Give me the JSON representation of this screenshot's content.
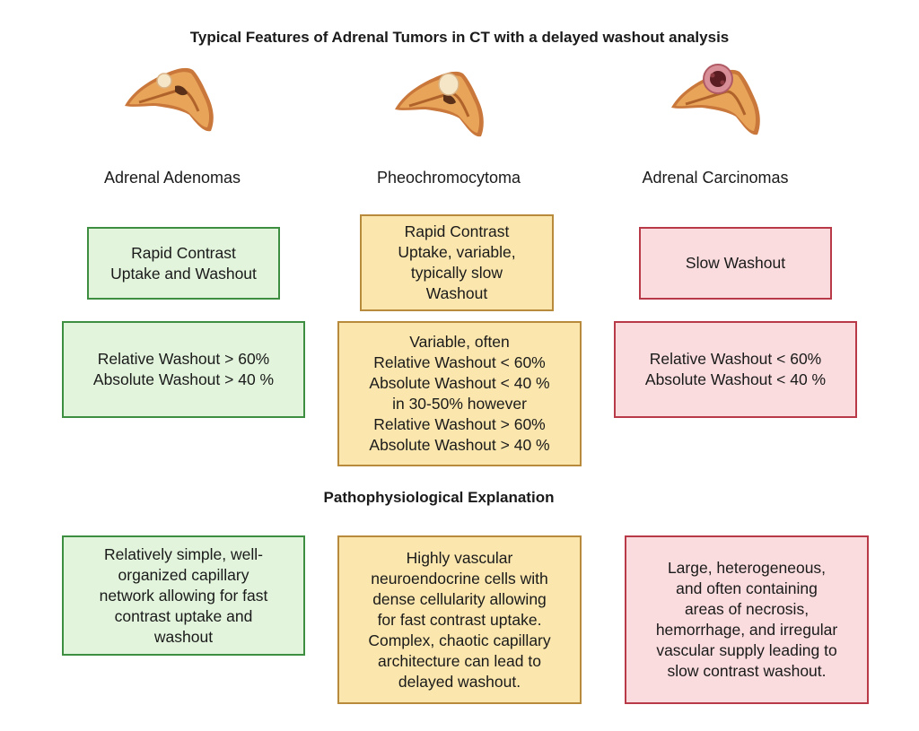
{
  "title": "Typical Features of Adrenal Tumors in CT with a delayed washout analysis",
  "subtitle": "Pathophysiological Explanation",
  "colors": {
    "green_fill": "#e2f4dc",
    "green_border": "#3e8e41",
    "yellow_fill": "#fbe6ad",
    "yellow_border": "#b88a3b",
    "pink_fill": "#fadcde",
    "pink_border": "#b83a48",
    "gland_fill": "#e8a55a",
    "gland_outline": "#c9773a"
  },
  "columns": [
    {
      "label": "Adrenal Adenomas",
      "icon": "adrenal-gland-small-nodule-icon",
      "contrast": [
        "Rapid Contrast",
        "Uptake and Washout"
      ],
      "washout": [
        "Relative Washout > 60%",
        "Absolute Washout > 40 %"
      ],
      "explanation": [
        "Relatively simple, well-",
        "organized capillary",
        "network allowing for fast",
        "contrast uptake and",
        "washout"
      ]
    },
    {
      "label": "Pheochromocytoma",
      "icon": "adrenal-gland-medulla-tumor-icon",
      "contrast": [
        "Rapid Contrast",
        "Uptake, variable,",
        "typically slow",
        "Washout"
      ],
      "washout": [
        "Variable, often",
        "Relative Washout < 60%",
        "Absolute Washout < 40 %",
        "in 30-50% however",
        "Relative Washout > 60%",
        "Absolute Washout > 40 %"
      ],
      "explanation": [
        "Highly vascular",
        "neuroendocrine cells with",
        "dense cellularity allowing",
        "for fast contrast uptake.",
        "Complex, chaotic capillary",
        "architecture can lead to",
        "delayed washout."
      ]
    },
    {
      "label": "Adrenal Carcinomas",
      "icon": "adrenal-gland-necrotic-tumor-icon",
      "contrast": [
        "Slow Washout"
      ],
      "washout": [
        "Relative Washout < 60%",
        "Absolute Washout < 40 %"
      ],
      "explanation": [
        "Large, heterogeneous,",
        "and often containing",
        "areas of necrosis,",
        "hemorrhage, and irregular",
        "vascular supply leading to",
        "slow contrast washout."
      ]
    }
  ]
}
